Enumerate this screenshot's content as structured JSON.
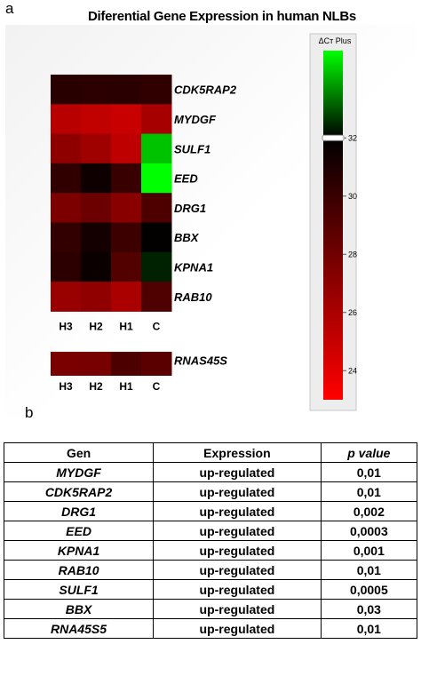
{
  "panel_labels": {
    "a": "a",
    "b": "b"
  },
  "chart_data": {
    "type": "heatmap",
    "title": "Diferential Gene Expression in human NLBs",
    "columns": [
      "H3",
      "H2",
      "H1",
      "C"
    ],
    "rows": [
      "CDK5RAP2",
      "MYDGF",
      "SULF1",
      "EED",
      "DRG1",
      "BBX",
      "KPNA1",
      "RAB10"
    ],
    "values": [
      [
        30.6,
        30.4,
        30.5,
        30.3
      ],
      [
        25.5,
        25.2,
        24.9,
        26.1
      ],
      [
        27.0,
        26.4,
        25.3,
        34.3
      ],
      [
        30.3,
        31.5,
        30.0,
        35.0
      ],
      [
        27.6,
        28.2,
        27.2,
        29.3
      ],
      [
        30.2,
        31.3,
        29.9,
        31.9
      ],
      [
        30.4,
        31.6,
        29.1,
        32.4
      ],
      [
        26.6,
        26.9,
        26.0,
        29.2
      ]
    ],
    "second_block": {
      "rows": [
        "RNAS45S"
      ],
      "values": [
        [
          27.7,
          27.8,
          29.3,
          28.8
        ]
      ]
    },
    "colorbar": {
      "label": "ΔCᴛ Plus",
      "min": 23,
      "max": 35,
      "ticks": [
        24,
        26,
        28,
        30,
        32
      ],
      "colors": [
        "#ff0000",
        "#000000",
        "#00ff00"
      ],
      "mid": 32
    }
  },
  "table": {
    "headers": [
      "Gen",
      "Expression",
      "p value"
    ],
    "rows": [
      [
        "MYDGF",
        "up-regulated",
        "0,01"
      ],
      [
        "CDK5RAP2",
        "up-regulated",
        "0,01"
      ],
      [
        "DRG1",
        "up-regulated",
        "0,002"
      ],
      [
        "EED",
        "up-regulated",
        "0,0003"
      ],
      [
        "KPNA1",
        "up-regulated",
        "0,001"
      ],
      [
        "RAB10",
        "up-regulated",
        "0,01"
      ],
      [
        "SULF1",
        "up-regulated",
        "0,0005"
      ],
      [
        "BBX",
        "up-regulated",
        "0,03"
      ],
      [
        "RNA45S5",
        "up-regulated",
        "0,01"
      ]
    ]
  }
}
